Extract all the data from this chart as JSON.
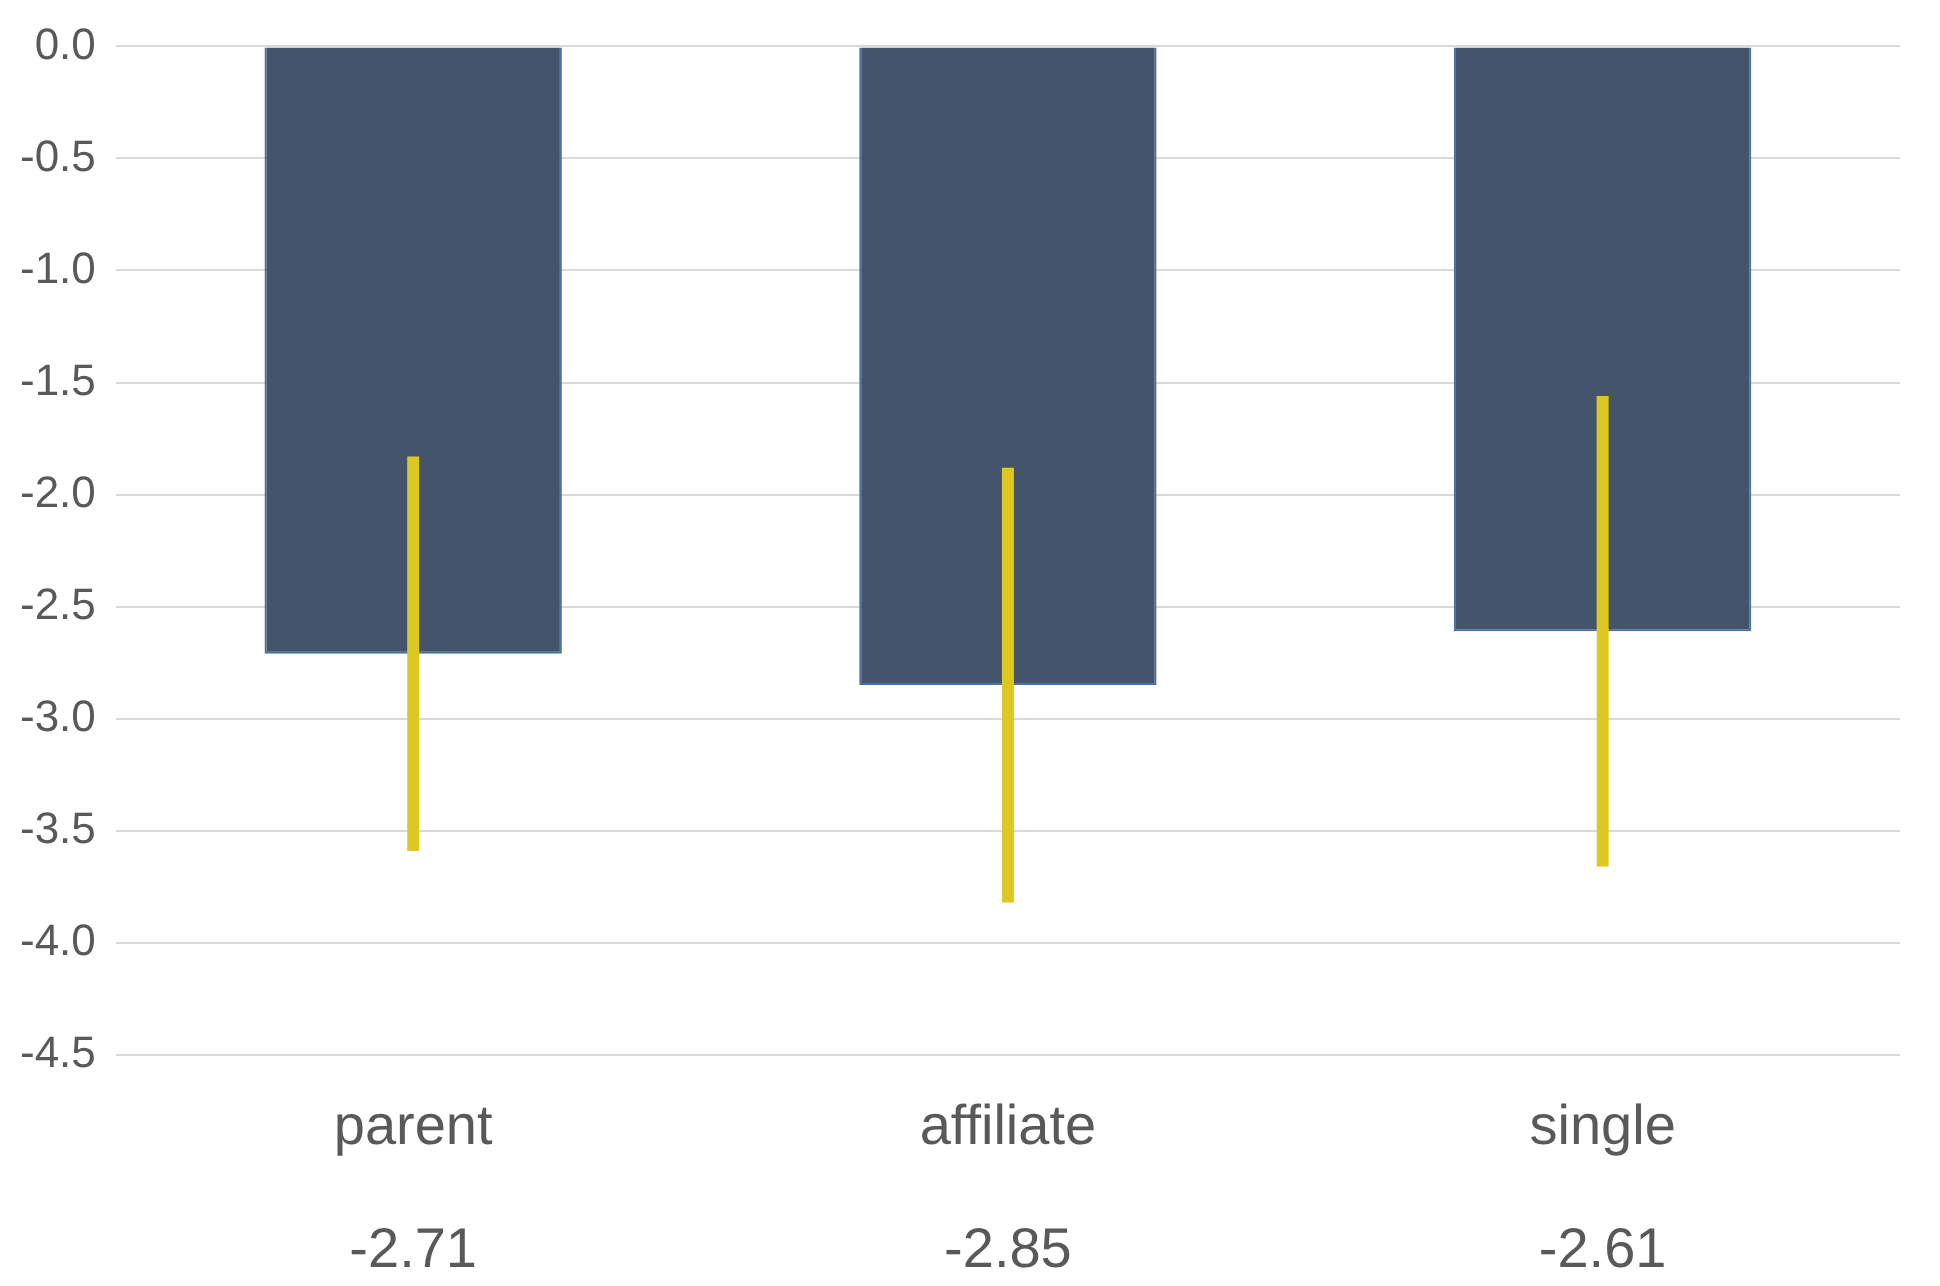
{
  "chart_data": {
    "type": "bar",
    "categories": [
      "parent",
      "affiliate",
      "single"
    ],
    "values": [
      -2.71,
      -2.85,
      -2.61
    ],
    "errors": [
      0.88,
      0.97,
      1.05
    ],
    "color": "#44546a",
    "data_labels": true,
    "ylim": [
      -4.5,
      0
    ],
    "yticks": [
      {
        "value": 0,
        "label": "0.0"
      },
      {
        "value": -0.5,
        "label": "-0.5"
      },
      {
        "value": -1,
        "label": "-1.0"
      },
      {
        "value": -1.5,
        "label": "-1.5"
      },
      {
        "value": -2,
        "label": "-2.0"
      },
      {
        "value": -2.5,
        "label": "-2.5"
      },
      {
        "value": -3,
        "label": "-3.0"
      },
      {
        "value": -3.5,
        "label": "-3.5"
      },
      {
        "value": -4,
        "label": "-4.0"
      },
      {
        "value": -4.5,
        "label": "-4.5"
      }
    ],
    "grid": "y",
    "legend": false
  }
}
